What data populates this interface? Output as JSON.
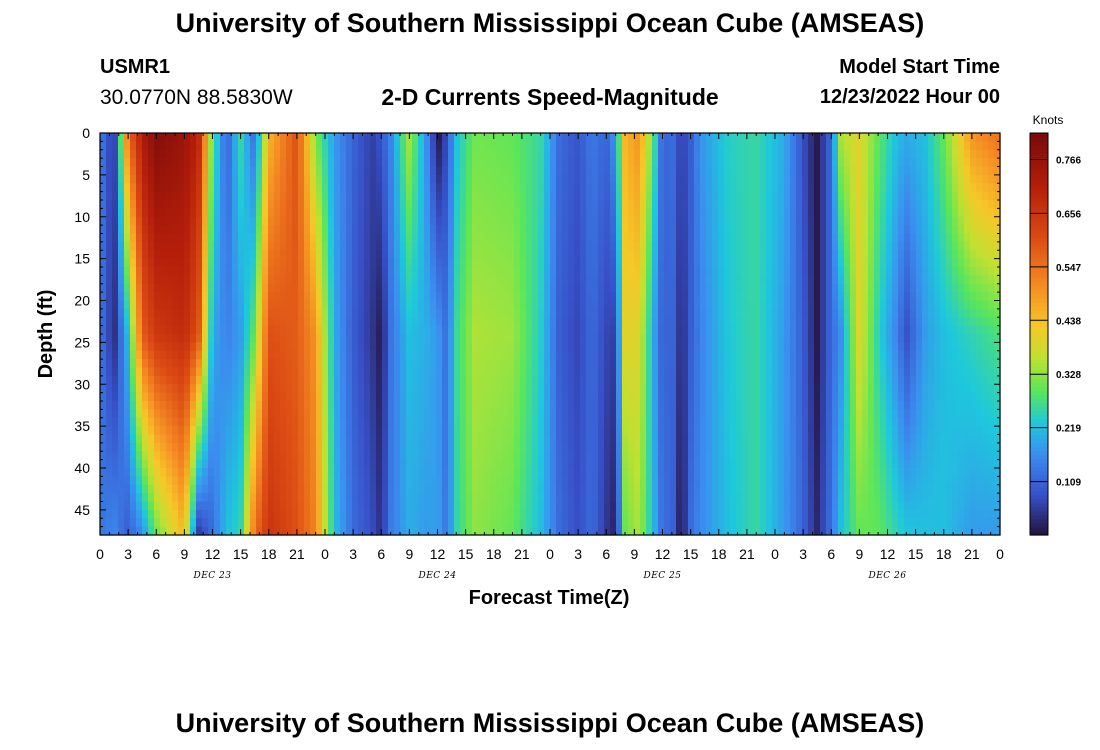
{
  "header": {
    "title": "University of Southern Mississippi Ocean Cube (AMSEAS)",
    "station": "USMR1",
    "coords": "30.0770N  88.5830W",
    "subtitle": "2-D Currents Speed-Magnitude",
    "start_label": "Model Start Time",
    "start_value": "12/23/2022 Hour 00"
  },
  "footer": {
    "title": "University of Southern Mississippi Ocean Cube (AMSEAS)"
  },
  "chart_data": {
    "type": "heatmap",
    "title": "2-D Currents Speed-Magnitude",
    "xlabel": "Forecast Time(Z)",
    "ylabel": "Depth (ft)",
    "xlim": [
      0,
      96
    ],
    "ylim": [
      0,
      48
    ],
    "x_unit": "hours since model start",
    "x_tick_labels": [
      "0",
      "3",
      "6",
      "9",
      "12",
      "15",
      "18",
      "21",
      "0",
      "3",
      "6",
      "9",
      "12",
      "15",
      "18",
      "21",
      "0",
      "3",
      "6",
      "9",
      "12",
      "15",
      "18",
      "21",
      "0",
      "3",
      "6",
      "9",
      "12",
      "15",
      "18",
      "21",
      "0"
    ],
    "day_labels": [
      {
        "label": "DEC 23",
        "hour": 12
      },
      {
        "label": "DEC 24",
        "hour": 36
      },
      {
        "label": "DEC 25",
        "hour": 60
      },
      {
        "label": "DEC 26",
        "hour": 84
      }
    ],
    "y_ticks": [
      0,
      5,
      10,
      15,
      20,
      25,
      30,
      35,
      40,
      45
    ],
    "colorbar": {
      "title": "Knots",
      "labels": [
        "0.766",
        "0.656",
        "0.547",
        "0.438",
        "0.328",
        "0.219",
        "0.109"
      ],
      "range": [
        0.0,
        0.82
      ]
    },
    "depths_ft": [
      0,
      24,
      48
    ],
    "speed_profiles_knots": [
      {
        "hour": 0,
        "speed": [
          0.15,
          0.14,
          0.13
        ]
      },
      {
        "hour": 1.5,
        "speed": [
          0.04,
          0.03,
          0.16
        ]
      },
      {
        "hour": 3,
        "speed": [
          0.55,
          0.22,
          0.1
        ]
      },
      {
        "hour": 4.5,
        "speed": [
          0.72,
          0.58,
          0.16
        ]
      },
      {
        "hour": 6,
        "speed": [
          0.8,
          0.65,
          0.3
        ]
      },
      {
        "hour": 9,
        "speed": [
          0.76,
          0.68,
          0.45
        ]
      },
      {
        "hour": 10.5,
        "speed": [
          0.7,
          0.6,
          0.05
        ]
      },
      {
        "hour": 12,
        "speed": [
          0.3,
          0.2,
          0.12
        ]
      },
      {
        "hour": 13.5,
        "speed": [
          0.1,
          0.15,
          0.22
        ]
      },
      {
        "hour": 15,
        "speed": [
          0.26,
          0.18,
          0.25
        ]
      },
      {
        "hour": 16.5,
        "speed": [
          0.12,
          0.3,
          0.55
        ]
      },
      {
        "hour": 18,
        "speed": [
          0.45,
          0.6,
          0.66
        ]
      },
      {
        "hour": 21,
        "speed": [
          0.6,
          0.58,
          0.6
        ]
      },
      {
        "hour": 23,
        "speed": [
          0.32,
          0.5,
          0.52
        ]
      },
      {
        "hour": 25,
        "speed": [
          0.18,
          0.2,
          0.22
        ]
      },
      {
        "hour": 27,
        "speed": [
          0.11,
          0.1,
          0.12
        ]
      },
      {
        "hour": 29,
        "speed": [
          0.06,
          0.05,
          0.08
        ]
      },
      {
        "hour": 30,
        "speed": [
          0.09,
          0.01,
          0.04
        ]
      },
      {
        "hour": 31,
        "speed": [
          0.15,
          0.13,
          0.14
        ]
      },
      {
        "hour": 33,
        "speed": [
          0.35,
          0.22,
          0.2
        ]
      },
      {
        "hour": 35,
        "speed": [
          0.15,
          0.2,
          0.18
        ]
      },
      {
        "hour": 36,
        "speed": [
          0.0,
          0.18,
          0.19
        ]
      },
      {
        "hour": 37,
        "speed": [
          0.08,
          0.12,
          0.13
        ]
      },
      {
        "hour": 38,
        "speed": [
          0.22,
          0.26,
          0.25
        ]
      },
      {
        "hour": 40,
        "speed": [
          0.31,
          0.35,
          0.33
        ]
      },
      {
        "hour": 44,
        "speed": [
          0.3,
          0.34,
          0.3
        ]
      },
      {
        "hour": 47,
        "speed": [
          0.26,
          0.24,
          0.22
        ]
      },
      {
        "hour": 49,
        "speed": [
          0.12,
          0.1,
          0.12
        ]
      },
      {
        "hour": 51,
        "speed": [
          0.09,
          0.07,
          0.08
        ]
      },
      {
        "hour": 52.5,
        "speed": [
          0.14,
          0.12,
          0.12
        ]
      },
      {
        "hour": 54,
        "speed": [
          0.11,
          0.07,
          0.05
        ]
      },
      {
        "hour": 55,
        "speed": [
          0.18,
          0.06,
          0.02
        ]
      },
      {
        "hour": 56,
        "speed": [
          0.45,
          0.4,
          0.3
        ]
      },
      {
        "hour": 57.5,
        "speed": [
          0.5,
          0.4,
          0.35
        ]
      },
      {
        "hour": 59,
        "speed": [
          0.3,
          0.2,
          0.22
        ]
      },
      {
        "hour": 60,
        "speed": [
          0.1,
          0.1,
          0.12
        ]
      },
      {
        "hour": 61,
        "speed": [
          0.13,
          0.12,
          0.12
        ]
      },
      {
        "hour": 62,
        "speed": [
          0.06,
          0.03,
          0.0
        ]
      },
      {
        "hour": 63,
        "speed": [
          0.1,
          0.1,
          0.12
        ]
      },
      {
        "hour": 64,
        "speed": [
          0.17,
          0.15,
          0.16
        ]
      },
      {
        "hour": 67,
        "speed": [
          0.24,
          0.23,
          0.22
        ]
      },
      {
        "hour": 70,
        "speed": [
          0.26,
          0.26,
          0.26
        ]
      },
      {
        "hour": 73,
        "speed": [
          0.2,
          0.18,
          0.18
        ]
      },
      {
        "hour": 75,
        "speed": [
          0.08,
          0.1,
          0.11
        ]
      },
      {
        "hour": 76.5,
        "speed": [
          0.01,
          0.01,
          0.03
        ]
      },
      {
        "hour": 78,
        "speed": [
          0.12,
          0.12,
          0.13
        ]
      },
      {
        "hour": 79,
        "speed": [
          0.35,
          0.16,
          0.22
        ]
      },
      {
        "hour": 81,
        "speed": [
          0.4,
          0.4,
          0.3
        ]
      },
      {
        "hour": 83,
        "speed": [
          0.3,
          0.25,
          0.3
        ]
      },
      {
        "hour": 85,
        "speed": [
          0.22,
          0.15,
          0.25
        ]
      },
      {
        "hour": 86,
        "speed": [
          0.2,
          0.08,
          0.23
        ]
      },
      {
        "hour": 88,
        "speed": [
          0.22,
          0.18,
          0.22
        ]
      },
      {
        "hour": 90,
        "speed": [
          0.3,
          0.22,
          0.22
        ]
      },
      {
        "hour": 93,
        "speed": [
          0.5,
          0.25,
          0.18
        ]
      },
      {
        "hour": 96,
        "speed": [
          0.55,
          0.28,
          0.18
        ]
      }
    ]
  }
}
